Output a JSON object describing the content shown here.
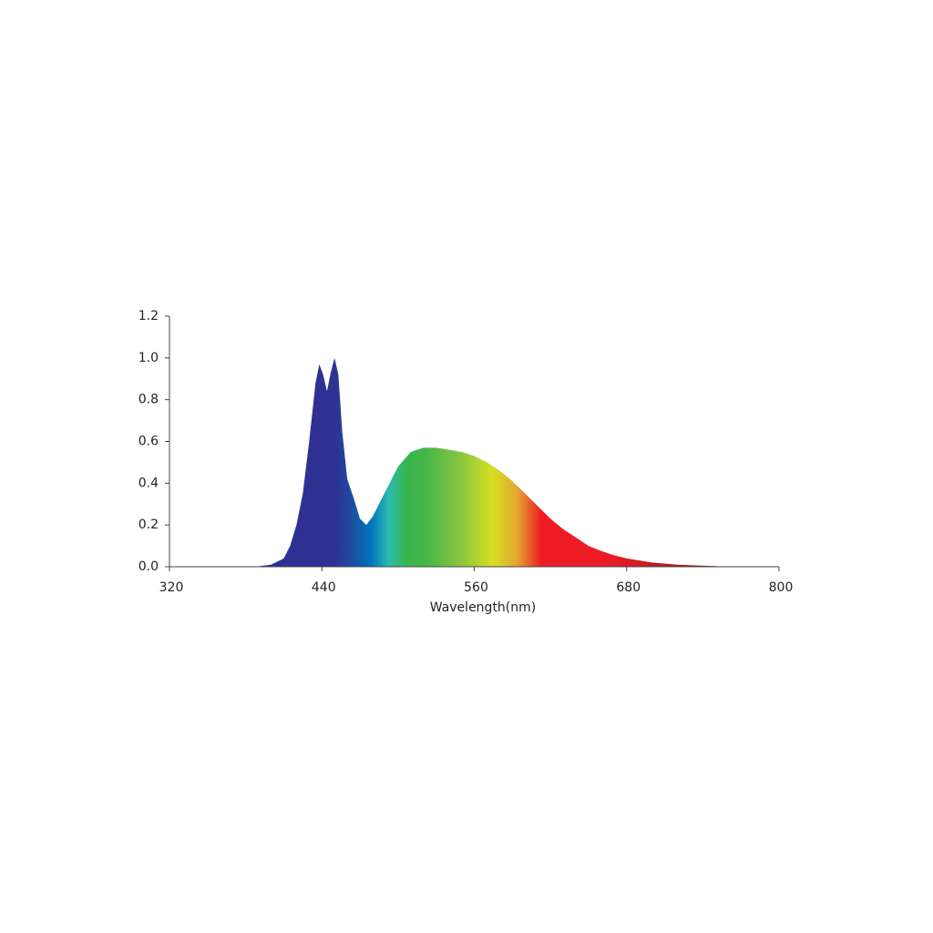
{
  "chart_data": {
    "type": "area",
    "x_label": "Wavelength(nm)",
    "x": [
      380,
      390,
      400,
      410,
      415,
      420,
      425,
      430,
      435,
      438,
      441,
      444,
      447,
      450,
      453,
      456,
      460,
      465,
      470,
      475,
      480,
      490,
      500,
      510,
      520,
      530,
      540,
      550,
      560,
      570,
      580,
      590,
      600,
      610,
      620,
      630,
      640,
      650,
      660,
      670,
      680,
      700,
      720,
      740,
      760,
      780
    ],
    "values": [
      0,
      0.002,
      0.01,
      0.04,
      0.1,
      0.2,
      0.35,
      0.6,
      0.88,
      0.97,
      0.92,
      0.84,
      0.93,
      1.0,
      0.92,
      0.65,
      0.42,
      0.33,
      0.23,
      0.2,
      0.24,
      0.36,
      0.48,
      0.55,
      0.57,
      0.57,
      0.56,
      0.55,
      0.53,
      0.5,
      0.46,
      0.41,
      0.35,
      0.29,
      0.23,
      0.18,
      0.14,
      0.1,
      0.075,
      0.055,
      0.04,
      0.02,
      0.01,
      0.005,
      0.001,
      0
    ],
    "xlim": [
      320,
      800
    ],
    "xticks": [
      320,
      440,
      560,
      680,
      800
    ],
    "ylim": [
      0,
      1.2
    ],
    "yticks": [
      {
        "value": 0,
        "label": "0.0"
      },
      0.2,
      0.4,
      0.6,
      0.8,
      {
        "value": 1,
        "label": "1.0"
      },
      1.2
    ],
    "grid": false
  }
}
